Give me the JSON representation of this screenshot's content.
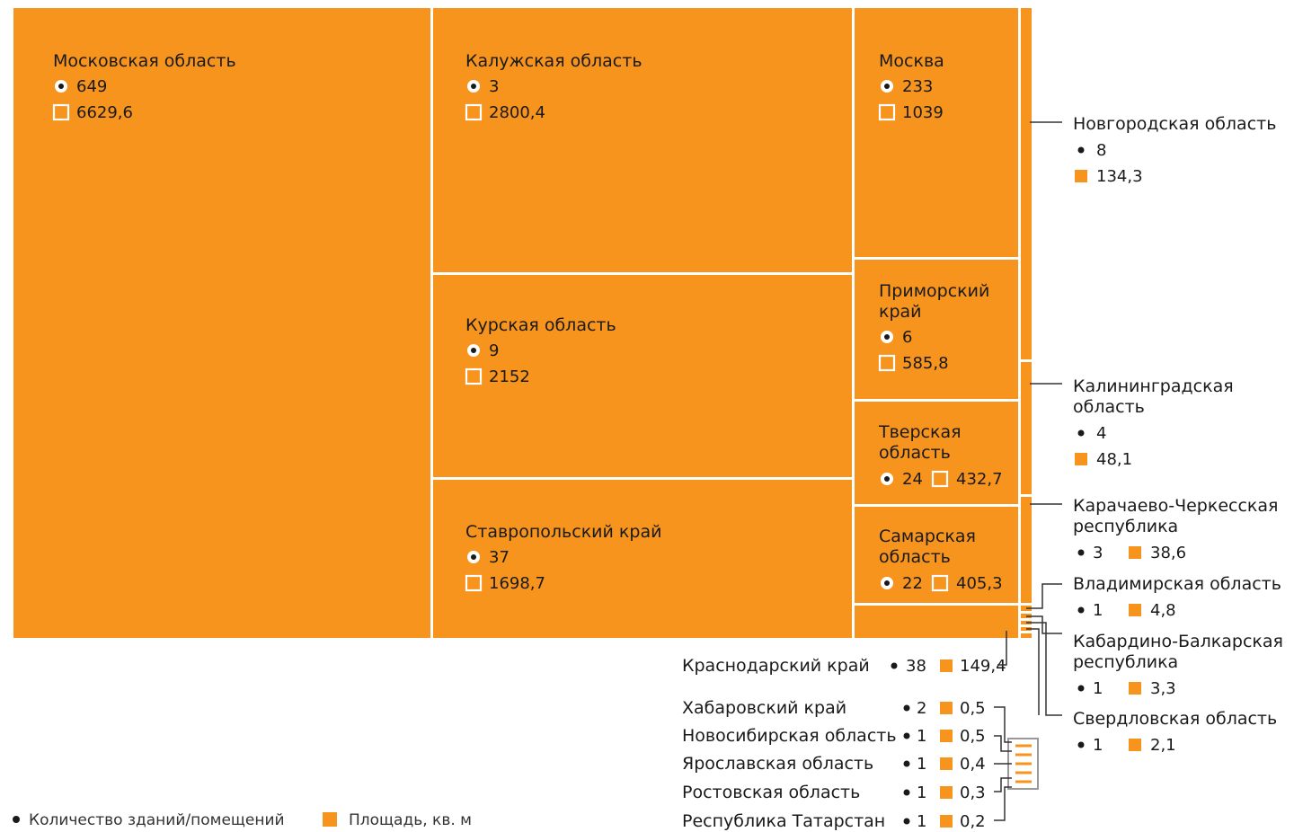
{
  "chart_data": {
    "type": "treemap",
    "colors": {
      "tile": "#f7941d",
      "text": "#1a1a1a",
      "lines": "#333333"
    },
    "legend": {
      "count_label": "Количество зданий/помещений",
      "area_label": "Площадь, кв. м"
    },
    "regions": [
      {
        "name": "Московская область",
        "count": "649",
        "area": "6629,6"
      },
      {
        "name": "Калужская область",
        "count": "3",
        "area": "2800,4"
      },
      {
        "name": "Курская область",
        "count": "9",
        "area": "2152"
      },
      {
        "name": "Ставропольский край",
        "count": "37",
        "area": "1698,7"
      },
      {
        "name": "Москва",
        "count": "233",
        "area": "1039"
      },
      {
        "name": "Приморский\nкрай",
        "count": "6",
        "area": "585,8"
      },
      {
        "name": "Тверская\nобласть",
        "count": "24",
        "area": "432,7"
      },
      {
        "name": "Самарская\nобласть",
        "count": "22",
        "area": "405,3"
      },
      {
        "name": "Краснодарский край",
        "count": "38",
        "area": "149,4"
      },
      {
        "name": "Новгородская область",
        "count": "8",
        "area": "134,3"
      },
      {
        "name": "Калининградская\nобласть",
        "count": "4",
        "area": "48,1"
      },
      {
        "name": "Карачаево-Черкесская\nреспублика",
        "count": "3",
        "area": "38,6"
      },
      {
        "name": "Владимирская область",
        "count": "1",
        "area": "4,8"
      },
      {
        "name": "Кабардино-Балкарская\nреспублика",
        "count": "1",
        "area": "3,3"
      },
      {
        "name": "Свердловская область",
        "count": "1",
        "area": "2,1"
      },
      {
        "name": "Хабаровский край",
        "count": "2",
        "area": "0,5"
      },
      {
        "name": "Новосибирская область",
        "count": "1",
        "area": "0,5"
      },
      {
        "name": "Ярославская область",
        "count": "1",
        "area": "0,4"
      },
      {
        "name": "Ростовская область",
        "count": "1",
        "area": "0,3"
      },
      {
        "name": "Республика Татарстан",
        "count": "1",
        "area": "0,2"
      }
    ]
  }
}
